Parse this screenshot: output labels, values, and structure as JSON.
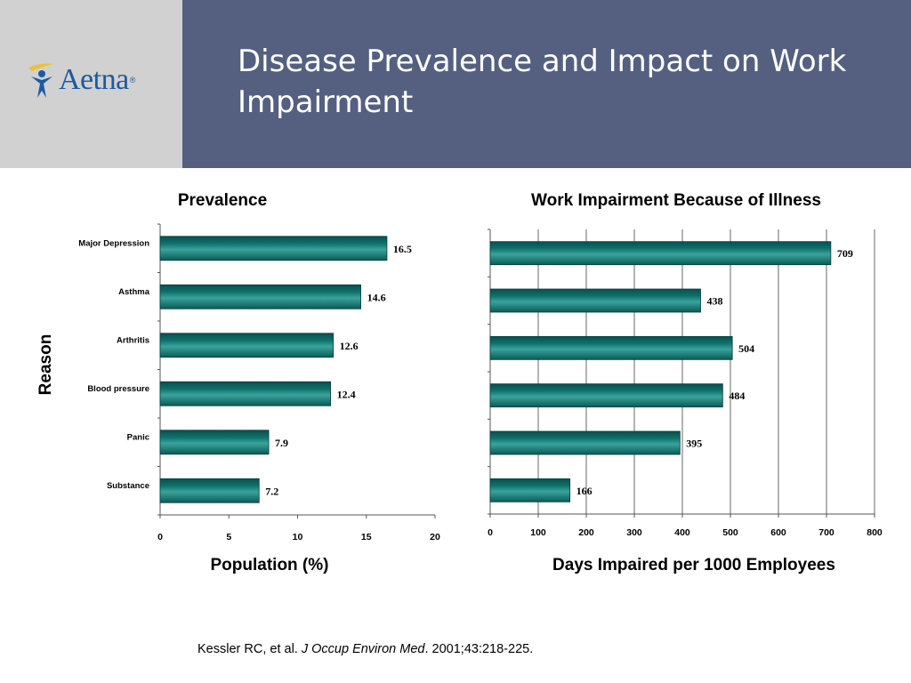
{
  "slide": {
    "title": "Disease Prevalence and Impact on Work Impairment",
    "logo_text": "Aetna",
    "logo_reg": "®"
  },
  "colors": {
    "header_bg": "#556081",
    "logo_panel_bg": "#d1d1d1",
    "bar_fill": "#0e716c",
    "grid": "#9a9a9a"
  },
  "citation": {
    "authors": "Kessler RC, et al.",
    "journal": "J Occup Environ Med",
    "details": ". 2001;43:218-225."
  },
  "chart_data": [
    {
      "type": "bar",
      "orientation": "horizontal",
      "title": "Prevalence",
      "ylabel": "Reason",
      "xlabel": "Population (%)",
      "categories": [
        "Major Depression",
        "Asthma",
        "Arthritis",
        "Blood pressure",
        "Panic",
        "Substance"
      ],
      "values": [
        16.5,
        14.6,
        12.6,
        12.4,
        7.9,
        7.2
      ],
      "value_labels": [
        "16.5",
        "14.6",
        "12.6",
        "12.4",
        "7.9",
        "7.2"
      ],
      "xlim": [
        0,
        20
      ],
      "xticks": [
        0,
        5,
        10,
        15,
        20
      ],
      "grid": false
    },
    {
      "type": "bar",
      "orientation": "horizontal",
      "title": "Work Impairment Because of Illness",
      "xlabel": "Days Impaired per 1000 Employees",
      "values": [
        709,
        438,
        504,
        484,
        395,
        166
      ],
      "value_labels": [
        "709",
        "438",
        "504",
        "484",
        "395",
        "166"
      ],
      "xlim": [
        0,
        800
      ],
      "xticks": [
        0,
        100,
        200,
        300,
        400,
        500,
        600,
        700,
        800
      ],
      "grid": true
    }
  ]
}
